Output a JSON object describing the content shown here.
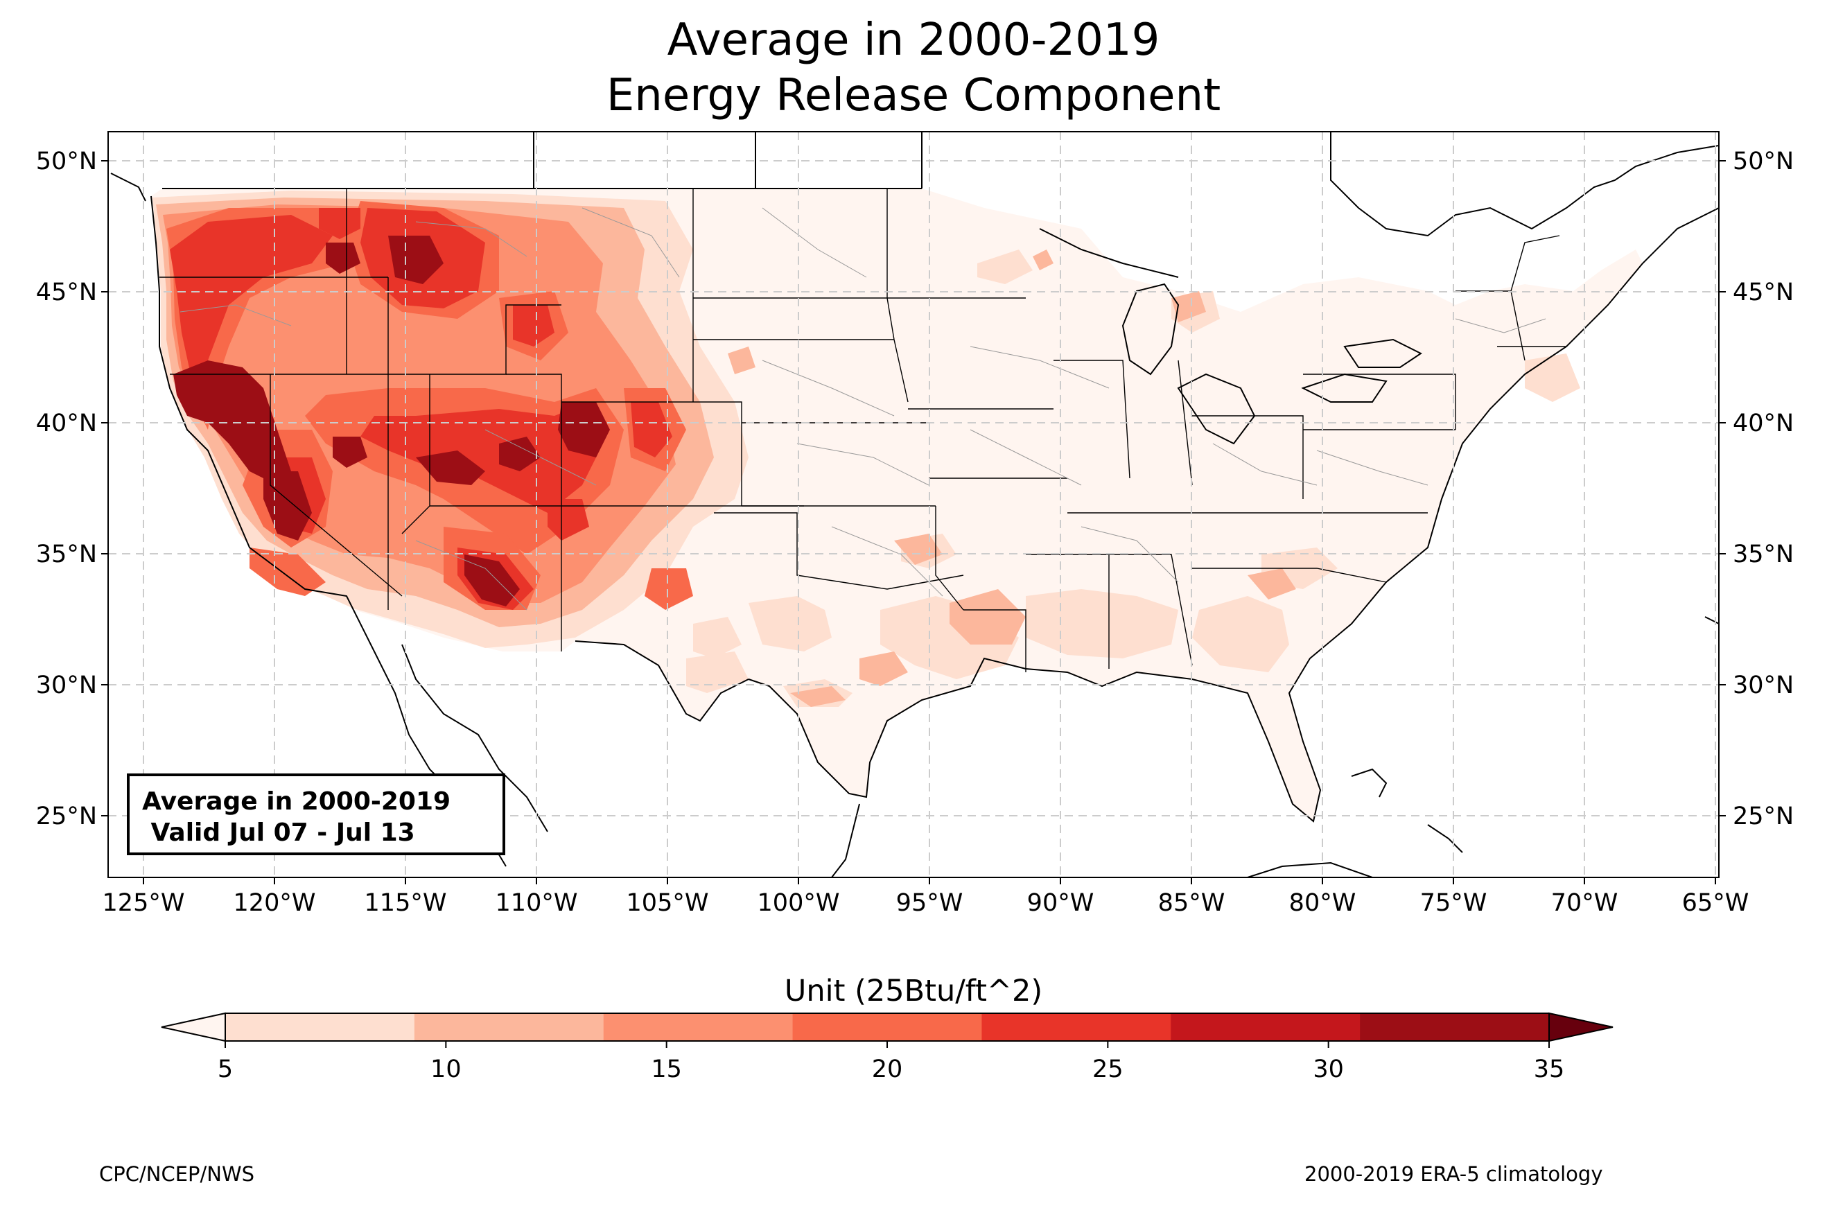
{
  "title": {
    "line1": "Average in 2000-2019",
    "line2": "Energy Release Component"
  },
  "map": {
    "lat_ticks": [
      "50°N",
      "45°N",
      "40°N",
      "35°N",
      "30°N",
      "25°N"
    ],
    "lon_ticks": [
      "125°W",
      "120°W",
      "115°W",
      "110°W",
      "105°W",
      "100°W",
      "95°W",
      "90°W",
      "85°W",
      "80°W",
      "75°W",
      "70°W",
      "65°W"
    ],
    "gridlines": true
  },
  "infobox": {
    "line1": "Average in 2000-2019",
    "line2": " Valid Jul 07 - Jul 13"
  },
  "colorbar": {
    "title": "Unit (25Btu/ft^2)",
    "ticks": [
      "5",
      "10",
      "15",
      "20",
      "25",
      "30",
      "35"
    ],
    "colors": [
      "#fedfd0",
      "#fcb79c",
      "#fc9070",
      "#f8694a",
      "#e83429",
      "#c4171c",
      "#9c0e15"
    ],
    "under_color": "#fff5f0",
    "over_color": "#67000d"
  },
  "footer": {
    "left": "CPC/NCEP/NWS",
    "right": "2000-2019 ERA-5 climatology"
  }
}
